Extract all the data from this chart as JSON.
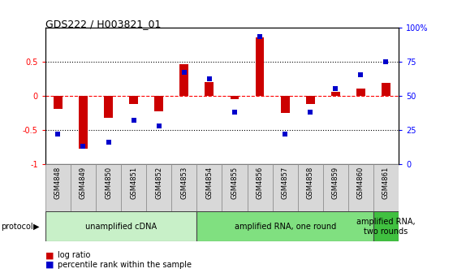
{
  "title": "GDS222 / H003821_01",
  "samples": [
    "GSM4848",
    "GSM4849",
    "GSM4850",
    "GSM4851",
    "GSM4852",
    "GSM4853",
    "GSM4854",
    "GSM4855",
    "GSM4856",
    "GSM4857",
    "GSM4858",
    "GSM4859",
    "GSM4860",
    "GSM4861"
  ],
  "log_ratio": [
    -0.2,
    -0.78,
    -0.33,
    -0.12,
    -0.23,
    0.46,
    0.2,
    -0.05,
    0.85,
    -0.25,
    -0.12,
    0.05,
    0.1,
    0.18
  ],
  "percentile": [
    22,
    13,
    16,
    32,
    28,
    67,
    62,
    38,
    93,
    22,
    38,
    55,
    65,
    75
  ],
  "protocol_groups": [
    {
      "label": "unamplified cDNA",
      "start": 0,
      "end": 5,
      "color": "#c8f0c8"
    },
    {
      "label": "amplified RNA, one round",
      "start": 6,
      "end": 12,
      "color": "#80e080"
    },
    {
      "label": "amplified RNA,\ntwo rounds",
      "start": 13,
      "end": 13,
      "color": "#40c040"
    }
  ],
  "ylim": [
    -1,
    1
  ],
  "yticks_left": [
    -1,
    -0.5,
    0,
    0.5
  ],
  "ytick_labels_left": [
    "-1",
    "-0.5",
    "0",
    "0.5"
  ],
  "yticks_right": [
    0,
    25,
    50,
    75,
    100
  ],
  "ytick_labels_right": [
    "0",
    "25",
    "50",
    "75",
    "100%"
  ],
  "bar_color": "#cc0000",
  "dot_color": "#0000cc",
  "background_color": "#ffffff",
  "label_box_color": "#d8d8d8",
  "dotted_lines_black": [
    -0.5,
    0.5
  ],
  "zero_line_color": "red",
  "bar_width": 0.35,
  "dot_size": 18,
  "title_fontsize": 9,
  "tick_fontsize": 7,
  "label_fontsize": 6,
  "proto_fontsize": 7,
  "legend_fontsize": 7
}
